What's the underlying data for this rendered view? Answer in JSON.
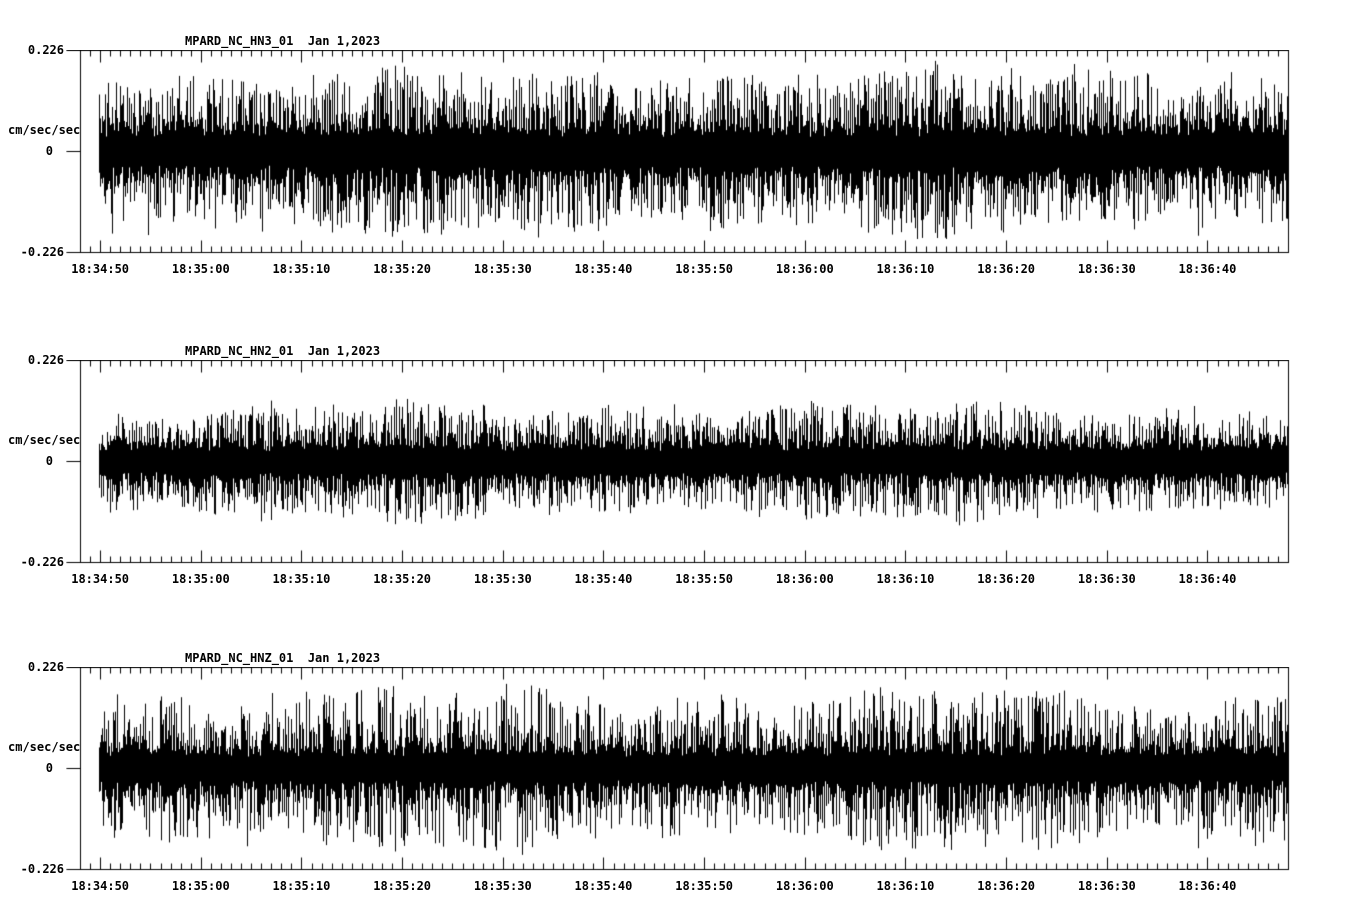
{
  "page": {
    "background_color": "#ffffff",
    "foreground_color": "#000000"
  },
  "chart_data": {
    "type": "line",
    "subtype": "seismogram-waveform",
    "panel_count": 3,
    "line_color": "#000000",
    "grid": false,
    "legend": "none",
    "time_axis": {
      "start": "18:34:48",
      "end": "18:36:48",
      "span_seconds": 120,
      "major_tick_interval_sec": 10,
      "minor_tick_interval_sec": 1,
      "major_labels": [
        "18:34:50",
        "18:35:00",
        "18:35:10",
        "18:35:20",
        "18:35:30",
        "18:35:40",
        "18:35:50",
        "18:36:00",
        "18:36:10",
        "18:36:20",
        "18:36:30",
        "18:36:40"
      ]
    },
    "amplitude_axis": {
      "units": "cm/sec/sec",
      "ylim": [
        -0.226,
        0.226
      ],
      "tick_labels": [
        "0.226",
        "0",
        "-0.226"
      ]
    },
    "panels": [
      {
        "title": "MPARD_NC_HN3_01  Jan 1,2023",
        "channel_id": "MPARD_NC_HN3_01",
        "date": "Jan 1,2023",
        "ylabel": "cm/sec/sec",
        "ylim": [
          -0.226,
          0.226
        ],
        "ytick_labels": [
          "0.226",
          "0",
          "-0.226"
        ],
        "trace_start": "18:34:50",
        "noise": {
          "solid_band": 0.045,
          "hair_amp": 0.123,
          "peak_amp": 0.19,
          "spike_prob": 0.018,
          "hair_pow": 1.7,
          "seed": 11
        }
      },
      {
        "title": "MPARD_NC_HN2_01  Jan 1,2023",
        "channel_id": "MPARD_NC_HN2_01",
        "date": "Jan 1,2023",
        "ylabel": "cm/sec/sec",
        "ylim": [
          -0.226,
          0.226
        ],
        "ytick_labels": [
          "0.226",
          "0",
          "-0.226"
        ],
        "trace_start": "18:34:50",
        "noise": {
          "solid_band": 0.034,
          "hair_amp": 0.085,
          "peak_amp": 0.128,
          "spike_prob": 0.012,
          "hair_pow": 1.8,
          "seed": 22
        }
      },
      {
        "title": "MPARD_NC_HNZ_01  Jan 1,2023",
        "channel_id": "MPARD_NC_HNZ_01",
        "date": "Jan 1,2023",
        "ylabel": "cm/sec/sec",
        "ylim": [
          -0.226,
          0.226
        ],
        "ytick_labels": [
          "0.226",
          "0",
          "-0.226"
        ],
        "trace_start": "18:34:50",
        "noise": {
          "solid_band": 0.038,
          "hair_amp": 0.123,
          "peak_amp": 0.185,
          "spike_prob": 0.018,
          "hair_pow": 2.1,
          "seed": 33
        }
      }
    ]
  }
}
